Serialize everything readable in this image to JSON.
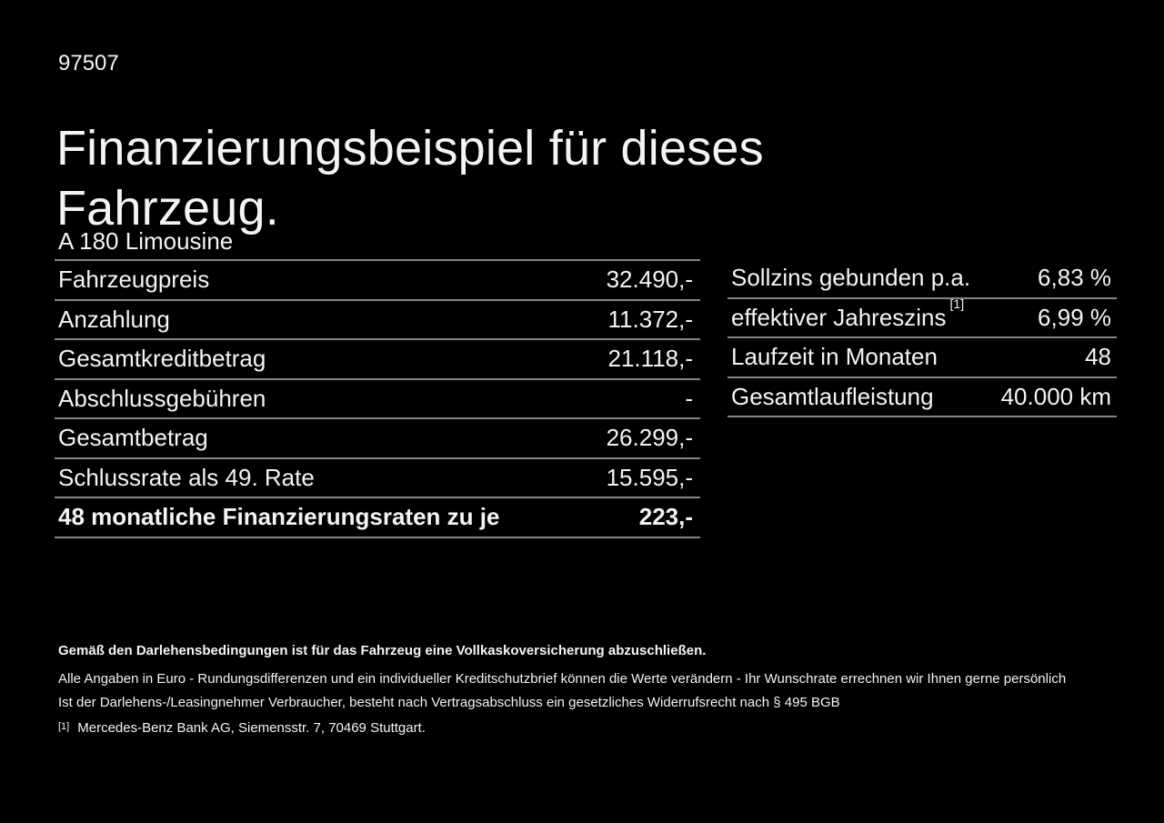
{
  "page": {
    "doc_number": "97507",
    "title": "Finanzierungsbeispiel für dieses Fahrzeug.",
    "vehicle_model": "A 180 Limousine"
  },
  "finance_table": {
    "rows": [
      {
        "label": "Fahrzeugpreis",
        "value": "32.490,-"
      },
      {
        "label": "Anzahlung",
        "value": "11.372,-"
      },
      {
        "label": "Gesamtkreditbetrag",
        "value": "21.118,-"
      },
      {
        "label": "Abschlussgebühren",
        "value": "-"
      },
      {
        "label": "Gesamtbetrag",
        "value": "26.299,-"
      },
      {
        "label": "Schlussrate als 49. Rate",
        "value": "15.595,-"
      }
    ],
    "highlight_row": {
      "label": "48 monatliche Finanzierungsraten zu je",
      "value": "223,-"
    }
  },
  "conditions_table": {
    "rows": [
      {
        "label": "Sollzins gebunden p.a.",
        "footnote": "",
        "value": "6,83 %"
      },
      {
        "label": "effektiver Jahreszins",
        "footnote": "[1]",
        "value": "6,99 %"
      },
      {
        "label": "Laufzeit in Monaten",
        "footnote": "",
        "value": "48"
      },
      {
        "label": "Gesamtlaufleistung",
        "footnote": "",
        "value": "40.000 km"
      }
    ]
  },
  "footer": {
    "insurance_note": "Gemäß den Darlehensbedingungen ist für das Fahrzeug eine Vollkaskoversicherung abzuschließen.",
    "disclaimer_line1": "Alle Angaben in Euro - Rundungsdifferenzen und ein individueller Kreditschutzbrief können die Werte verändern - Ihr Wunschrate errechnen wir Ihnen gerne persönlich",
    "disclaimer_line2": "Ist der Darlehens-/Leasingnehmer Verbraucher, besteht nach Vertragsabschluss ein gesetzliches Widerrufsrecht nach § 495 BGB",
    "footnote_marker": "[1]",
    "footnote_text": "Mercedes-Benz Bank AG, Siemensstr. 7, 70469 Stuttgart."
  },
  "colors": {
    "background": "#000000",
    "text": "#f4f4f4",
    "separator": "#858585"
  }
}
